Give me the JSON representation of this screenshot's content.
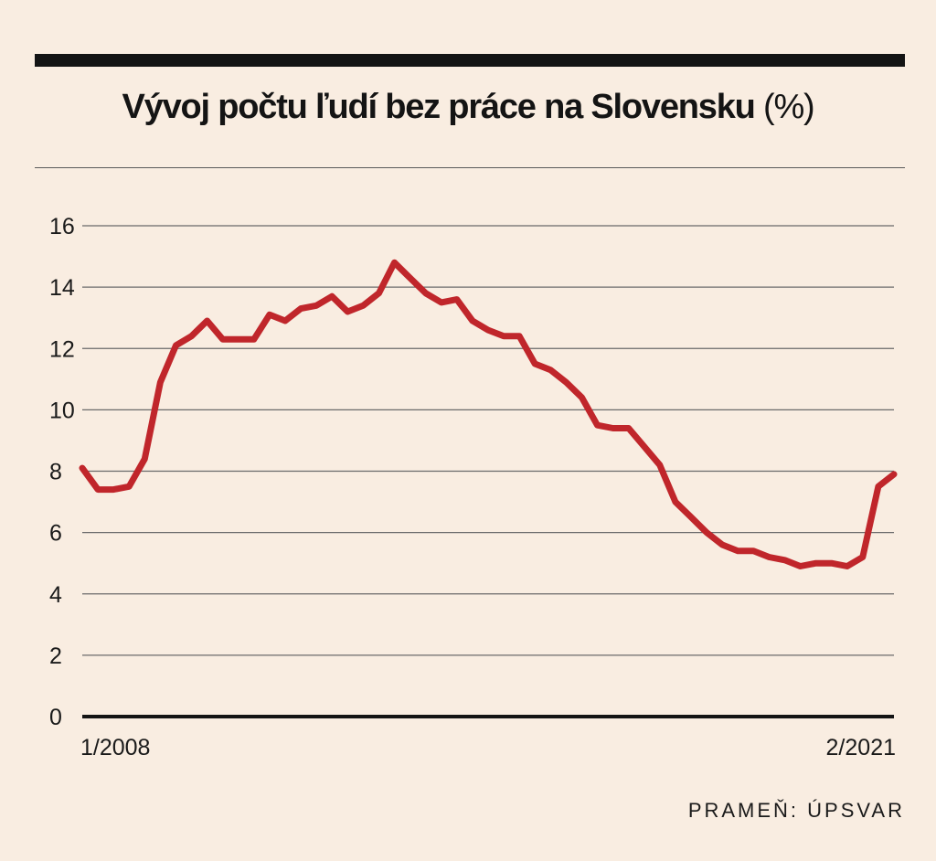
{
  "title": {
    "main": "Vývoj počtu ľudí bez práce na Slovensku",
    "unit": "(%)"
  },
  "source": "PRAMEŇ: ÚPSVAR",
  "chart_data": {
    "type": "line",
    "title": "Vývoj počtu ľudí bez práce na Slovensku (%)",
    "xlabel": "",
    "ylabel": "",
    "ylim": [
      0,
      16
    ],
    "yticks": [
      0,
      2,
      4,
      6,
      8,
      10,
      12,
      14,
      16
    ],
    "x_start_label": "1/2008",
    "x_end_label": "2/2021",
    "grid": "horizontal",
    "line_color": "#c0262b",
    "series": [
      {
        "x": [
          "1/2008",
          "4/2008",
          "7/2008",
          "10/2008",
          "1/2009",
          "4/2009",
          "7/2009",
          "10/2009",
          "1/2010",
          "4/2010",
          "7/2010",
          "10/2010",
          "1/2011",
          "4/2011",
          "7/2011",
          "10/2011",
          "1/2012",
          "4/2012",
          "7/2012",
          "10/2012",
          "1/2013",
          "4/2013",
          "7/2013",
          "10/2013",
          "1/2014",
          "4/2014",
          "7/2014",
          "10/2014",
          "1/2015",
          "4/2015",
          "7/2015",
          "10/2015",
          "1/2016",
          "4/2016",
          "7/2016",
          "10/2016",
          "1/2017",
          "4/2017",
          "7/2017",
          "10/2017",
          "1/2018",
          "4/2018",
          "7/2018",
          "10/2018",
          "1/2019",
          "4/2019",
          "7/2019",
          "10/2019",
          "1/2020",
          "4/2020",
          "7/2020",
          "10/2020",
          "2/2021"
        ],
        "values": [
          8.1,
          7.4,
          7.4,
          7.5,
          8.4,
          10.9,
          12.1,
          12.4,
          12.9,
          12.3,
          12.3,
          12.3,
          13.1,
          12.9,
          13.3,
          13.4,
          13.7,
          13.2,
          13.4,
          13.8,
          14.8,
          14.3,
          13.8,
          13.5,
          13.6,
          12.9,
          12.6,
          12.4,
          12.4,
          11.5,
          11.3,
          10.9,
          10.4,
          9.5,
          9.4,
          9.4,
          8.8,
          8.2,
          7.0,
          6.5,
          6.0,
          5.6,
          5.4,
          5.4,
          5.2,
          5.1,
          4.9,
          5.0,
          5.0,
          4.9,
          5.2,
          7.5,
          7.9
        ]
      }
    ]
  }
}
